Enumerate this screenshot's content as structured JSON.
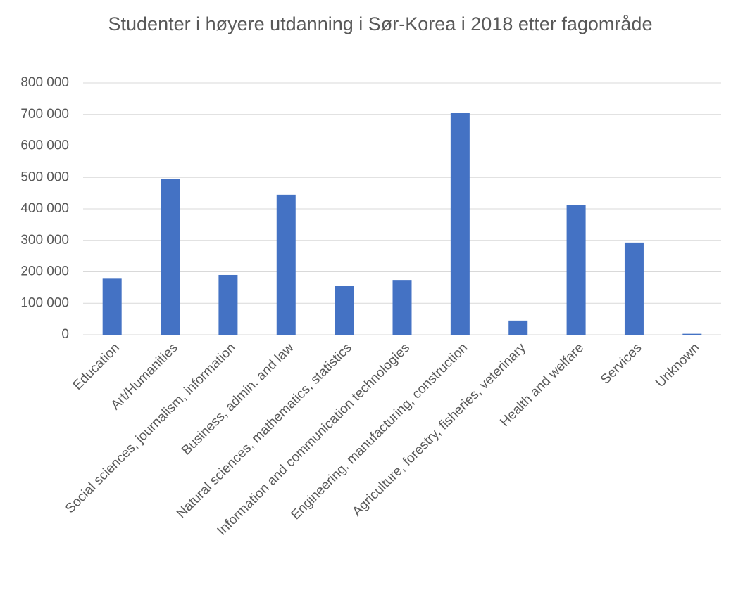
{
  "chart_data": {
    "type": "bar",
    "title": "Studenter i høyere utdanning i Sør-Korea i 2018 etter fagområde",
    "categories": [
      "Education",
      "Art/Humanities",
      "Social sciences, journalism, information",
      "Business, admin. and law",
      "Natural sciences, mathematics, statistics",
      "Information and communication technologies",
      "Engineering, manufacturing, construction",
      "Agriculture, forestry, fisheries, veterinary",
      "Health and welfare",
      "Services",
      "Unknown"
    ],
    "values": [
      178000,
      494000,
      190000,
      445000,
      156000,
      174000,
      704000,
      45000,
      413000,
      293000,
      3000
    ],
    "color": "#4472c4",
    "ylim": [
      0,
      800000
    ],
    "yticks": [
      {
        "value": 0,
        "label": "0"
      },
      {
        "value": 100000,
        "label": "100 000"
      },
      {
        "value": 200000,
        "label": "200 000"
      },
      {
        "value": 300000,
        "label": "300 000"
      },
      {
        "value": 400000,
        "label": "400 000"
      },
      {
        "value": 500000,
        "label": "500 000"
      },
      {
        "value": 600000,
        "label": "600 000"
      },
      {
        "value": 700000,
        "label": "700 000"
      },
      {
        "value": 800000,
        "label": "800 000"
      }
    ],
    "grid": true
  }
}
